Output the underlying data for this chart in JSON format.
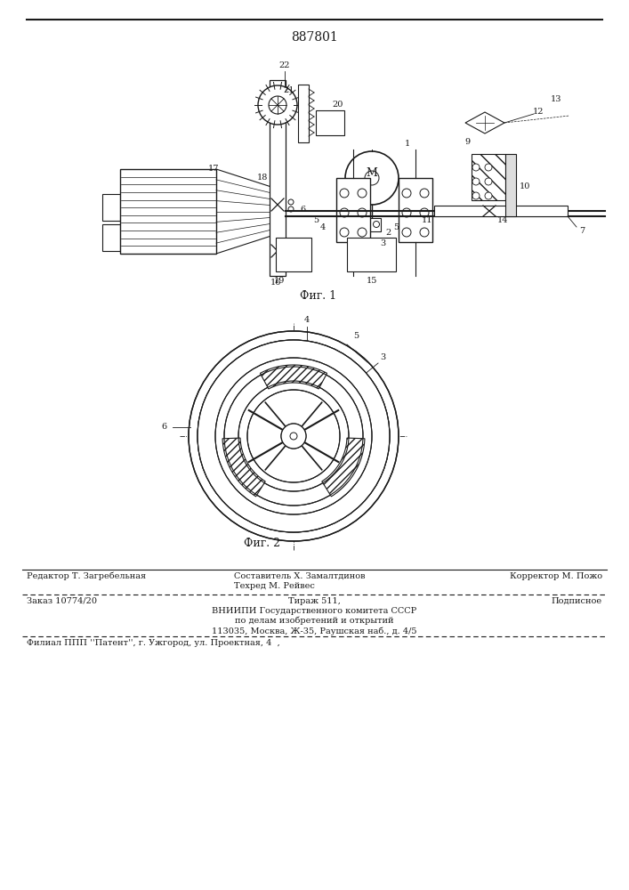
{
  "patent_number": "887801",
  "fig1_caption": "Фиг. 1",
  "fig2_caption": "Фиг. 2",
  "footer_line1_left": "Редактор Т. Загребельная",
  "footer_line1_center_top": "Составитель Х. Замалтдинов",
  "footer_line1_center_bot": "Техред М. Рейвес",
  "footer_line1_right": "Корректор М. Пожо",
  "footer_line2_left": "Заказ 10774/20",
  "footer_line2_center": "Тираж 511,\nВНИИПИ Государственного комитета СССР\nпо делам изобретений и открытий\n113035, Москва, Ж-35, Раушская наб., д. 4/5",
  "footer_line2_right": "Подписное",
  "footer_bottom": "Филиал ППП ''Патент'', г. Ужгород, ул. Проектная, 4  ,",
  "bg_color": "#ffffff",
  "line_color": "#1a1a1a"
}
